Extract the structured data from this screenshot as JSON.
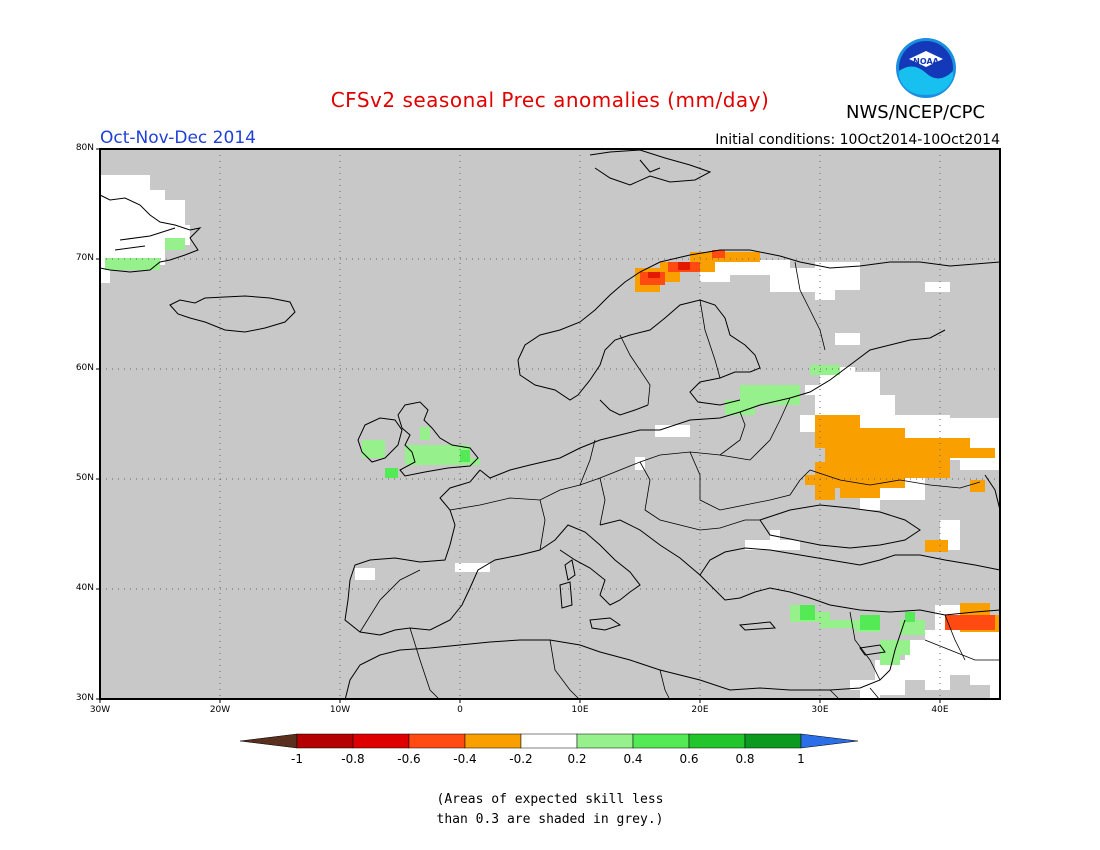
{
  "header": {
    "title": "CFSv2 seasonal Prec anomalies (mm/day)",
    "season": "Oct-Nov-Dec 2014",
    "initial_conditions": "Initial conditions: 10Oct2014-10Oct2014",
    "agency": "NWS/NCEP/CPC",
    "logo_text": "NOAA"
  },
  "map": {
    "lat_ticks": [
      "80N",
      "70N",
      "60N",
      "50N",
      "40N",
      "30N"
    ],
    "lon_ticks": [
      "30W",
      "20W",
      "10W",
      "0",
      "10E",
      "20E",
      "30E",
      "40E"
    ],
    "colors": {
      "grey_mask": "#c8c8c8",
      "white": "#ffffff",
      "dry_orange": "#f9a000",
      "dry_red_orange": "#ff4a12",
      "dry_red": "#e31a00",
      "wet_light_green": "#96f08c",
      "wet_green": "#54ea56"
    }
  },
  "colorbar": {
    "labels": [
      "-1",
      "-0.8",
      "-0.6",
      "-0.4",
      "-0.2",
      "0.2",
      "0.4",
      "0.6",
      "0.8",
      "1"
    ],
    "colors": [
      "#5a2f1e",
      "#b40000",
      "#de0000",
      "#ff4a12",
      "#f9a000",
      "#ffffff",
      "#96f08c",
      "#54ea56",
      "#22c62c",
      "#0b9a1f",
      "#2a6ee8"
    ]
  },
  "note": {
    "line1": "(Areas of expected skill less",
    "line2": "than 0.3 are shaded in grey.)"
  }
}
